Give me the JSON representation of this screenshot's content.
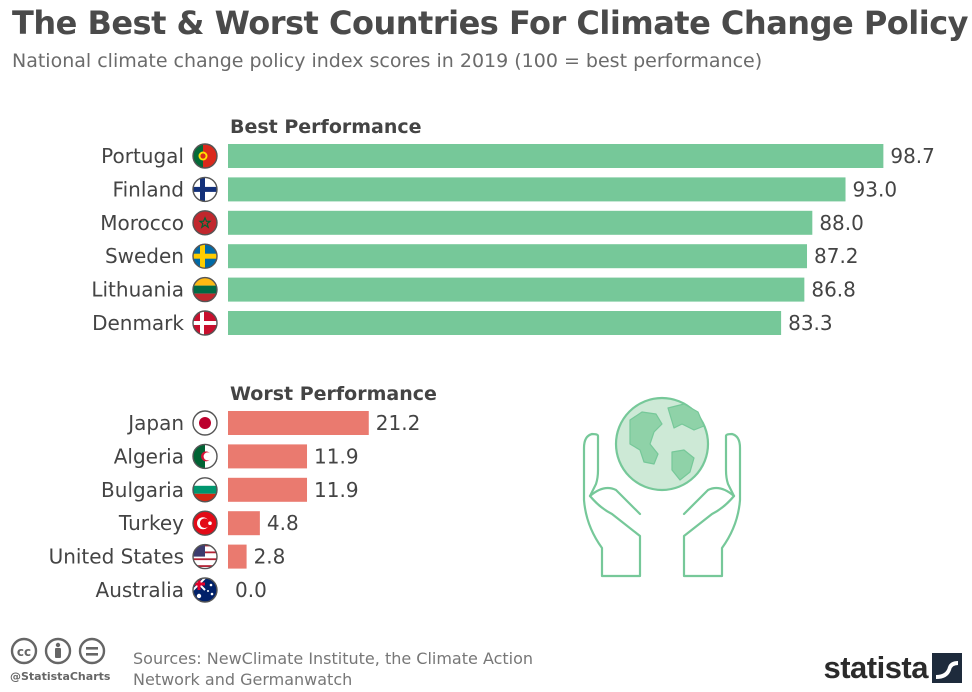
{
  "header": {
    "title": "The Best & Worst Countries For Climate Change Policy",
    "subtitle": "National climate change policy index scores in 2019 (100 = best performance)"
  },
  "chart_data": {
    "type": "bar",
    "orientation": "horizontal",
    "xlim": [
      0,
      100
    ],
    "groups": [
      {
        "name": "Best Performance",
        "color": "#76c899",
        "categories": [
          "Portugal",
          "Finland",
          "Morocco",
          "Sweden",
          "Lithuania",
          "Denmark"
        ],
        "values": [
          98.7,
          93.0,
          88.0,
          87.2,
          86.8,
          83.3
        ],
        "labels": [
          "98.7",
          "93.0",
          "88.0",
          "87.2",
          "86.8",
          "83.3"
        ]
      },
      {
        "name": "Worst Performance",
        "color": "#ea7a6f",
        "categories": [
          "Japan",
          "Algeria",
          "Bulgaria",
          "Turkey",
          "United States",
          "Australia"
        ],
        "values": [
          21.2,
          11.9,
          11.9,
          4.8,
          2.8,
          0.0
        ],
        "labels": [
          "21.2",
          "11.9",
          "11.9",
          "4.8",
          "2.8",
          "0.0"
        ]
      }
    ]
  },
  "flags": [
    "portugal-flag-icon",
    "finland-flag-icon",
    "morocco-flag-icon",
    "sweden-flag-icon",
    "lithuania-flag-icon",
    "denmark-flag-icon",
    "japan-flag-icon",
    "algeria-flag-icon",
    "bulgaria-flag-icon",
    "turkey-flag-icon",
    "united-states-flag-icon",
    "australia-flag-icon"
  ],
  "illustration": "globe-in-hands-icon",
  "footer": {
    "handle": "@StatistaCharts",
    "sources": "Sources: NewClimate Institute, the Climate Action Network and Germanwatch",
    "brand": "statista",
    "license_icons": [
      "cc-icon",
      "attribution-icon",
      "no-derivatives-icon"
    ]
  }
}
